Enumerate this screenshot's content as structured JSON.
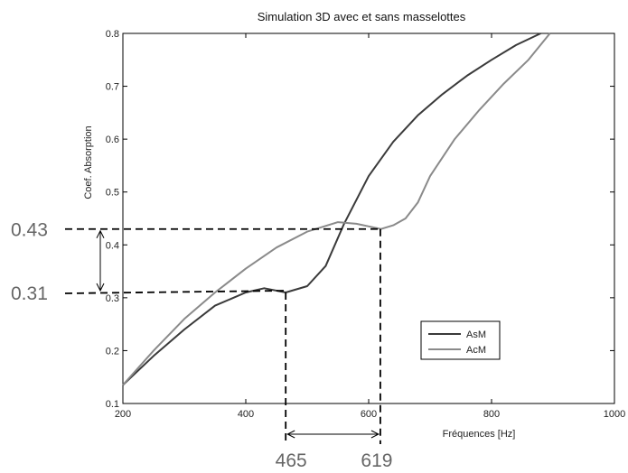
{
  "chart_data": {
    "type": "line",
    "title": "Simulation 3D avec et sans masselottes",
    "xlabel": "Fréquences [Hz]",
    "ylabel": "Coef. Absorption",
    "xlim": [
      200,
      1000
    ],
    "ylim": [
      0.1,
      0.8
    ],
    "xticks": [
      200,
      400,
      600,
      800,
      1000
    ],
    "yticks": [
      0.1,
      0.2,
      0.3,
      0.4,
      0.5,
      0.6,
      0.7,
      0.8
    ],
    "grid": false,
    "legend_position": "bottom-right",
    "colors": {
      "AsM": "#3a3a3a",
      "AcM": "#8a8a8a"
    },
    "series": [
      {
        "name": "AsM",
        "x": [
          200,
          250,
          300,
          350,
          400,
          430,
          465,
          500,
          530,
          560,
          600,
          640,
          680,
          720,
          760,
          800,
          840,
          880
        ],
        "y": [
          0.135,
          0.19,
          0.24,
          0.285,
          0.31,
          0.318,
          0.31,
          0.322,
          0.36,
          0.44,
          0.53,
          0.595,
          0.645,
          0.685,
          0.72,
          0.75,
          0.778,
          0.8
        ]
      },
      {
        "name": "AcM",
        "x": [
          200,
          250,
          300,
          350,
          400,
          450,
          500,
          550,
          580,
          620,
          640,
          660,
          680,
          700,
          740,
          780,
          820,
          860,
          895
        ],
        "y": [
          0.135,
          0.2,
          0.26,
          0.31,
          0.355,
          0.395,
          0.425,
          0.443,
          0.44,
          0.43,
          0.437,
          0.45,
          0.48,
          0.53,
          0.6,
          0.655,
          0.705,
          0.75,
          0.8
        ]
      }
    ],
    "annotations": {
      "y_markers": [
        "0.43",
        "0.31"
      ],
      "x_markers": [
        "465",
        "619"
      ],
      "y_marker_values": [
        0.43,
        0.31
      ],
      "x_marker_values": [
        465,
        619
      ]
    }
  }
}
